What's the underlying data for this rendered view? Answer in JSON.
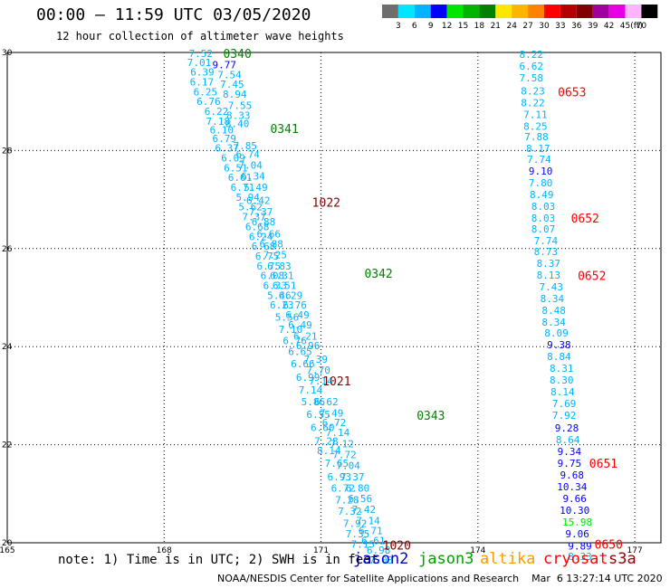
{
  "header": {
    "title": "00:00 – 11:59 UTC 03/05/2020",
    "subtitle": "12 hour collection of altimeter wave heights"
  },
  "legend": {
    "unit": "(ft)",
    "bins": [
      {
        "label": "3",
        "color": "#6e6e6e"
      },
      {
        "label": "6",
        "color": "#00e6ff"
      },
      {
        "label": "9",
        "color": "#00b4ff"
      },
      {
        "label": "12",
        "color": "#0000ff"
      },
      {
        "label": "15",
        "color": "#00e600"
      },
      {
        "label": "18",
        "color": "#00b400"
      },
      {
        "label": "21",
        "color": "#008200"
      },
      {
        "label": "24",
        "color": "#ffe600"
      },
      {
        "label": "27",
        "color": "#ffb400"
      },
      {
        "label": "30",
        "color": "#ff8200"
      },
      {
        "label": "33",
        "color": "#ff0000"
      },
      {
        "label": "36",
        "color": "#b40000"
      },
      {
        "label": "39",
        "color": "#820000"
      },
      {
        "label": "42",
        "color": "#a000a0"
      },
      {
        "label": "45",
        "color": "#e600e6"
      },
      {
        "label": "70",
        "color": "#ffb4ff"
      },
      {
        "label": "",
        "color": "#000000"
      }
    ]
  },
  "axes": {
    "x_ticks": [
      "165",
      "168",
      "171",
      "174",
      "177"
    ],
    "y_ticks": [
      "30",
      "28",
      "26",
      "24",
      "22",
      "20"
    ]
  },
  "tracks": [
    {
      "id": "left1",
      "points": [
        {
          "lat": 29.98,
          "lon": 168.7,
          "v": "7.52",
          "c": "#00b4ff"
        },
        {
          "lat": 29.8,
          "lon": 168.67,
          "v": "7.01",
          "c": "#00b4ff"
        },
        {
          "lat": 29.6,
          "lon": 168.73,
          "v": "6.39",
          "c": "#00b4ff"
        },
        {
          "lat": 29.4,
          "lon": 168.72,
          "v": "6.17",
          "c": "#00b4ff"
        },
        {
          "lat": 29.2,
          "lon": 168.79,
          "v": "6.25",
          "c": "#00b4ff"
        },
        {
          "lat": 29.0,
          "lon": 168.85,
          "v": "6.76",
          "c": "#00b4ff"
        },
        {
          "lat": 28.8,
          "lon": 169.0,
          "v": "6.22",
          "c": "#00b4ff"
        },
        {
          "lat": 28.6,
          "lon": 169.03,
          "v": "7.18",
          "c": "#00b4ff"
        },
        {
          "lat": 28.42,
          "lon": 169.1,
          "v": "6.10",
          "c": "#00b4ff"
        },
        {
          "lat": 28.25,
          "lon": 169.15,
          "v": "6.79",
          "c": "#00b4ff"
        },
        {
          "lat": 28.05,
          "lon": 169.2,
          "v": "6.37",
          "c": "#00b4ff"
        },
        {
          "lat": 27.85,
          "lon": 169.32,
          "v": "6.09",
          "c": "#00b4ff"
        },
        {
          "lat": 27.65,
          "lon": 169.37,
          "v": "6.51",
          "c": "#00b4ff"
        },
        {
          "lat": 27.45,
          "lon": 169.45,
          "v": "6.61",
          "c": "#00b4ff"
        },
        {
          "lat": 27.25,
          "lon": 169.5,
          "v": "6.71",
          "c": "#00b4ff"
        },
        {
          "lat": 27.05,
          "lon": 169.6,
          "v": "5.94",
          "c": "#00b4ff"
        },
        {
          "lat": 26.85,
          "lon": 169.65,
          "v": "5.62",
          "c": "#00b4ff"
        },
        {
          "lat": 26.65,
          "lon": 169.72,
          "v": "7.37",
          "c": "#00b4ff"
        },
        {
          "lat": 26.45,
          "lon": 169.78,
          "v": "6.68",
          "c": "#00b4ff"
        },
        {
          "lat": 26.25,
          "lon": 169.85,
          "v": "6.24",
          "c": "#00b4ff"
        },
        {
          "lat": 26.05,
          "lon": 169.9,
          "v": "6.68",
          "c": "#00b4ff"
        },
        {
          "lat": 25.85,
          "lon": 169.97,
          "v": "6.75",
          "c": "#00b4ff"
        },
        {
          "lat": 25.65,
          "lon": 170.0,
          "v": "6.75",
          "c": "#00b4ff"
        },
        {
          "lat": 25.45,
          "lon": 170.07,
          "v": "6.08",
          "c": "#00b4ff"
        },
        {
          "lat": 25.25,
          "lon": 170.12,
          "v": "6.33",
          "c": "#00b4ff"
        },
        {
          "lat": 25.05,
          "lon": 170.2,
          "v": "5.46",
          "c": "#00b4ff"
        },
        {
          "lat": 24.85,
          "lon": 170.25,
          "v": "6.23",
          "c": "#00b4ff"
        },
        {
          "lat": 24.6,
          "lon": 170.35,
          "v": "5.56",
          "c": "#00b4ff"
        },
        {
          "lat": 24.35,
          "lon": 170.42,
          "v": "7.10",
          "c": "#00b4ff"
        },
        {
          "lat": 24.12,
          "lon": 170.5,
          "v": "6.76",
          "c": "#00b4ff"
        },
        {
          "lat": 23.9,
          "lon": 170.6,
          "v": "6.65",
          "c": "#00b4ff"
        },
        {
          "lat": 23.65,
          "lon": 170.65,
          "v": "6.66",
          "c": "#00b4ff"
        },
        {
          "lat": 23.38,
          "lon": 170.75,
          "v": "6.99",
          "c": "#00b4ff"
        },
        {
          "lat": 23.12,
          "lon": 170.8,
          "v": "7.14",
          "c": "#00b4ff"
        },
        {
          "lat": 22.88,
          "lon": 170.85,
          "v": "5.86",
          "c": "#00b4ff"
        },
        {
          "lat": 22.62,
          "lon": 170.95,
          "v": "6.55",
          "c": "#00b4ff"
        },
        {
          "lat": 22.35,
          "lon": 171.03,
          "v": "6.60",
          "c": "#00b4ff"
        },
        {
          "lat": 22.08,
          "lon": 171.1,
          "v": "7.28",
          "c": "#00b4ff"
        },
        {
          "lat": 21.88,
          "lon": 171.15,
          "v": "8.14",
          "c": "#00b4ff"
        },
        {
          "lat": 21.62,
          "lon": 171.3,
          "v": "7.65",
          "c": "#00b4ff"
        },
        {
          "lat": 21.35,
          "lon": 171.35,
          "v": "6.93",
          "c": "#00b4ff"
        },
        {
          "lat": 21.12,
          "lon": 171.42,
          "v": "6.72",
          "c": "#00b4ff"
        },
        {
          "lat": 20.88,
          "lon": 171.5,
          "v": "7.28",
          "c": "#00b4ff"
        },
        {
          "lat": 20.65,
          "lon": 171.55,
          "v": "7.32",
          "c": "#00b4ff"
        },
        {
          "lat": 20.4,
          "lon": 171.65,
          "v": "7.92",
          "c": "#00b4ff"
        },
        {
          "lat": 20.18,
          "lon": 171.7,
          "v": "7.35",
          "c": "#00b4ff"
        },
        {
          "lat": 19.97,
          "lon": 171.8,
          "v": "7.15",
          "c": "#00b4ff"
        }
      ]
    },
    {
      "id": "left2",
      "points": [
        {
          "lat": 29.75,
          "lon": 169.15,
          "v": "9.77",
          "c": "#0000ff"
        },
        {
          "lat": 29.55,
          "lon": 169.25,
          "v": "7.54",
          "c": "#00b4ff"
        },
        {
          "lat": 29.35,
          "lon": 169.3,
          "v": "7.45",
          "c": "#00b4ff"
        },
        {
          "lat": 29.15,
          "lon": 169.35,
          "v": "8.94",
          "c": "#00b4ff"
        },
        {
          "lat": 28.92,
          "lon": 169.45,
          "v": "7.55",
          "c": "#00b4ff"
        },
        {
          "lat": 28.72,
          "lon": 169.42,
          "v": "8.33",
          "c": "#00b4ff"
        },
        {
          "lat": 28.55,
          "lon": 169.4,
          "v": "8.40",
          "c": "#00b4ff"
        },
        {
          "lat": 28.1,
          "lon": 169.55,
          "v": "7.85",
          "c": "#00b4ff"
        },
        {
          "lat": 27.92,
          "lon": 169.6,
          "v": "6.74",
          "c": "#00b4ff"
        },
        {
          "lat": 27.7,
          "lon": 169.65,
          "v": "7.04",
          "c": "#00b4ff"
        },
        {
          "lat": 27.48,
          "lon": 169.7,
          "v": "6.34",
          "c": "#00b4ff"
        },
        {
          "lat": 27.25,
          "lon": 169.75,
          "v": "5.49",
          "c": "#00b4ff"
        },
        {
          "lat": 26.98,
          "lon": 169.8,
          "v": "6.42",
          "c": "#00b4ff"
        },
        {
          "lat": 26.75,
          "lon": 169.85,
          "v": "7.37",
          "c": "#00b4ff"
        },
        {
          "lat": 26.55,
          "lon": 169.9,
          "v": "6.88",
          "c": "#00b4ff"
        },
        {
          "lat": 26.3,
          "lon": 170.0,
          "v": "6.66",
          "c": "#00b4ff"
        },
        {
          "lat": 26.1,
          "lon": 170.05,
          "v": "6.88",
          "c": "#00b4ff"
        },
        {
          "lat": 25.88,
          "lon": 170.12,
          "v": "7.25",
          "c": "#00b4ff"
        },
        {
          "lat": 25.65,
          "lon": 170.2,
          "v": "6.83",
          "c": "#00b4ff"
        },
        {
          "lat": 25.45,
          "lon": 170.25,
          "v": "6.31",
          "c": "#00b4ff"
        },
        {
          "lat": 25.25,
          "lon": 170.3,
          "v": "6.51",
          "c": "#00b4ff"
        },
        {
          "lat": 25.05,
          "lon": 170.42,
          "v": "6.29",
          "c": "#00b4ff"
        },
        {
          "lat": 24.85,
          "lon": 170.5,
          "v": "6.76",
          "c": "#00b4ff"
        },
        {
          "lat": 24.65,
          "lon": 170.55,
          "v": "6.49",
          "c": "#00b4ff"
        },
        {
          "lat": 24.45,
          "lon": 170.6,
          "v": "6.49",
          "c": "#00b4ff"
        },
        {
          "lat": 24.22,
          "lon": 170.7,
          "v": "6.21",
          "c": "#00b4ff"
        },
        {
          "lat": 24.02,
          "lon": 170.75,
          "v": "6.96",
          "c": "#00b4ff"
        },
        {
          "lat": 23.75,
          "lon": 170.9,
          "v": "7.39",
          "c": "#00b4ff"
        },
        {
          "lat": 23.52,
          "lon": 170.95,
          "v": "7.70",
          "c": "#00b4ff"
        },
        {
          "lat": 23.3,
          "lon": 171.0,
          "v": "7.14",
          "c": "#00b4ff"
        },
        {
          "lat": 22.88,
          "lon": 171.1,
          "v": "6.62",
          "c": "#00b4ff"
        },
        {
          "lat": 22.65,
          "lon": 171.2,
          "v": "7.49",
          "c": "#00b4ff"
        },
        {
          "lat": 22.45,
          "lon": 171.25,
          "v": "6.72",
          "c": "#00b4ff"
        },
        {
          "lat": 22.25,
          "lon": 171.32,
          "v": "7.14",
          "c": "#00b4ff"
        },
        {
          "lat": 22.02,
          "lon": 171.4,
          "v": "7.12",
          "c": "#00b4ff"
        },
        {
          "lat": 21.8,
          "lon": 171.45,
          "v": "7.72",
          "c": "#00b4ff"
        },
        {
          "lat": 21.58,
          "lon": 171.52,
          "v": "7.04",
          "c": "#00b4ff"
        },
        {
          "lat": 21.35,
          "lon": 171.6,
          "v": "7.37",
          "c": "#00b4ff"
        },
        {
          "lat": 21.12,
          "lon": 171.7,
          "v": "6.80",
          "c": "#00b4ff"
        },
        {
          "lat": 20.9,
          "lon": 171.75,
          "v": "6.56",
          "c": "#00b4ff"
        },
        {
          "lat": 20.68,
          "lon": 171.82,
          "v": "7.42",
          "c": "#00b4ff"
        },
        {
          "lat": 20.45,
          "lon": 171.9,
          "v": "7.14",
          "c": "#00b4ff"
        },
        {
          "lat": 20.25,
          "lon": 171.95,
          "v": "6.71",
          "c": "#00b4ff"
        },
        {
          "lat": 20.05,
          "lon": 172.0,
          "v": "6.61",
          "c": "#00b4ff"
        },
        {
          "lat": 19.85,
          "lon": 172.1,
          "v": "6.98",
          "c": "#00b4ff"
        },
        {
          "lat": 19.65,
          "lon": 172.15,
          "v": "7.03",
          "c": "#00b4ff"
        }
      ]
    },
    {
      "id": "right",
      "points": [
        {
          "lat": 29.96,
          "lon": 175.02,
          "v": "8.22",
          "c": "#00b4ff"
        },
        {
          "lat": 29.72,
          "lon": 175.02,
          "v": "6.62",
          "c": "#00b4ff"
        },
        {
          "lat": 29.48,
          "lon": 175.02,
          "v": "7.58",
          "c": "#00b4ff"
        },
        {
          "lat": 29.22,
          "lon": 175.05,
          "v": "8.23",
          "c": "#00b4ff"
        },
        {
          "lat": 28.98,
          "lon": 175.05,
          "v": "8.22",
          "c": "#00b4ff"
        },
        {
          "lat": 28.74,
          "lon": 175.1,
          "v": "7.11",
          "c": "#00b4ff"
        },
        {
          "lat": 28.5,
          "lon": 175.1,
          "v": "8.25",
          "c": "#00b4ff"
        },
        {
          "lat": 28.28,
          "lon": 175.12,
          "v": "7.88",
          "c": "#00b4ff"
        },
        {
          "lat": 28.04,
          "lon": 175.15,
          "v": "8.17",
          "c": "#00b4ff"
        },
        {
          "lat": 27.82,
          "lon": 175.17,
          "v": "7.74",
          "c": "#00b4ff"
        },
        {
          "lat": 27.58,
          "lon": 175.2,
          "v": "9.10",
          "c": "#0000ff"
        },
        {
          "lat": 27.34,
          "lon": 175.2,
          "v": "7.80",
          "c": "#00b4ff"
        },
        {
          "lat": 27.1,
          "lon": 175.22,
          "v": "8.49",
          "c": "#00b4ff"
        },
        {
          "lat": 26.86,
          "lon": 175.25,
          "v": "8.03",
          "c": "#00b4ff"
        },
        {
          "lat": 26.62,
          "lon": 175.25,
          "v": "8.03",
          "c": "#00b4ff"
        },
        {
          "lat": 26.4,
          "lon": 175.25,
          "v": "8.07",
          "c": "#00b4ff"
        },
        {
          "lat": 26.16,
          "lon": 175.3,
          "v": "7.74",
          "c": "#00b4ff"
        },
        {
          "lat": 25.94,
          "lon": 175.3,
          "v": "8.73",
          "c": "#00b4ff"
        },
        {
          "lat": 25.7,
          "lon": 175.35,
          "v": "8.37",
          "c": "#00b4ff"
        },
        {
          "lat": 25.46,
          "lon": 175.35,
          "v": "8.13",
          "c": "#00b4ff"
        },
        {
          "lat": 25.22,
          "lon": 175.4,
          "v": "7.43",
          "c": "#00b4ff"
        },
        {
          "lat": 24.98,
          "lon": 175.42,
          "v": "8.34",
          "c": "#00b4ff"
        },
        {
          "lat": 24.74,
          "lon": 175.45,
          "v": "8.48",
          "c": "#00b4ff"
        },
        {
          "lat": 24.5,
          "lon": 175.45,
          "v": "8.34",
          "c": "#00b4ff"
        },
        {
          "lat": 24.28,
          "lon": 175.5,
          "v": "8.09",
          "c": "#00b4ff"
        },
        {
          "lat": 24.04,
          "lon": 175.55,
          "v": "9.38",
          "c": "#0000ff"
        },
        {
          "lat": 23.8,
          "lon": 175.55,
          "v": "8.84",
          "c": "#00b4ff"
        },
        {
          "lat": 23.56,
          "lon": 175.6,
          "v": "8.31",
          "c": "#00b4ff"
        },
        {
          "lat": 23.32,
          "lon": 175.6,
          "v": "8.30",
          "c": "#00b4ff"
        },
        {
          "lat": 23.08,
          "lon": 175.62,
          "v": "8.14",
          "c": "#00b4ff"
        },
        {
          "lat": 22.84,
          "lon": 175.65,
          "v": "7.69",
          "c": "#00b4ff"
        },
        {
          "lat": 22.6,
          "lon": 175.65,
          "v": "7.92",
          "c": "#00b4ff"
        },
        {
          "lat": 22.34,
          "lon": 175.7,
          "v": "9.28",
          "c": "#0000ff"
        },
        {
          "lat": 22.1,
          "lon": 175.72,
          "v": "8.64",
          "c": "#00b4ff"
        },
        {
          "lat": 21.86,
          "lon": 175.75,
          "v": "9.34",
          "c": "#0000ff"
        },
        {
          "lat": 21.62,
          "lon": 175.75,
          "v": "9.75",
          "c": "#0000ff"
        },
        {
          "lat": 21.38,
          "lon": 175.8,
          "v": "9.68",
          "c": "#0000ff"
        },
        {
          "lat": 21.14,
          "lon": 175.8,
          "v": "10.34",
          "c": "#0000ff"
        },
        {
          "lat": 20.9,
          "lon": 175.85,
          "v": "9.66",
          "c": "#0000ff"
        },
        {
          "lat": 20.66,
          "lon": 175.85,
          "v": "10.30",
          "c": "#0000ff"
        },
        {
          "lat": 20.42,
          "lon": 175.9,
          "v": "15.98",
          "c": "#00e600"
        },
        {
          "lat": 20.18,
          "lon": 175.9,
          "v": "9.06",
          "c": "#0000ff"
        },
        {
          "lat": 19.94,
          "lon": 175.95,
          "v": "9.89",
          "c": "#0000ff"
        },
        {
          "lat": 19.72,
          "lon": 175.95,
          "v": "8.33",
          "c": "#00b4ff"
        }
      ]
    }
  ],
  "pass_labels": [
    {
      "text": "0340",
      "lat": 29.98,
      "lon": 169.4,
      "c": "#008200"
    },
    {
      "text": "0341",
      "lat": 28.45,
      "lon": 170.3,
      "c": "#008200"
    },
    {
      "text": "1022",
      "lat": 26.95,
      "lon": 171.1,
      "c": "#820000"
    },
    {
      "text": "0342",
      "lat": 25.5,
      "lon": 172.1,
      "c": "#008200"
    },
    {
      "text": "1021",
      "lat": 23.3,
      "lon": 171.3,
      "c": "#820000"
    },
    {
      "text": "0343",
      "lat": 22.6,
      "lon": 173.1,
      "c": "#008200"
    },
    {
      "text": "1020",
      "lat": 19.95,
      "lon": 172.45,
      "c": "#820000"
    },
    {
      "text": "0653",
      "lat": 29.2,
      "lon": 175.8,
      "c": "#ff0000"
    },
    {
      "text": "0652",
      "lat": 26.62,
      "lon": 176.05,
      "c": "#ff0000"
    },
    {
      "text": "0652",
      "lat": 25.45,
      "lon": 176.18,
      "c": "#ff0000"
    },
    {
      "text": "0651",
      "lat": 21.62,
      "lon": 176.4,
      "c": "#ff0000"
    },
    {
      "text": "0650",
      "lat": 19.97,
      "lon": 176.5,
      "c": "#ff0000"
    }
  ],
  "footer": {
    "note": "note: 1) Time is in UTC; 2) SWH is in feet",
    "satellites": [
      {
        "name": "jason2",
        "color": "#0000cc"
      },
      {
        "name": "jason3",
        "color": "#00a000"
      },
      {
        "name": "altika",
        "color": "#ff9900"
      },
      {
        "name": "cryosat",
        "color": "#ff0000"
      },
      {
        "name": "s3a",
        "color": "#990000"
      }
    ],
    "credit": "NOAA/NESDIS Center for Satellite Applications and Research    Mar  6 13:27:14 UTC 2020"
  }
}
